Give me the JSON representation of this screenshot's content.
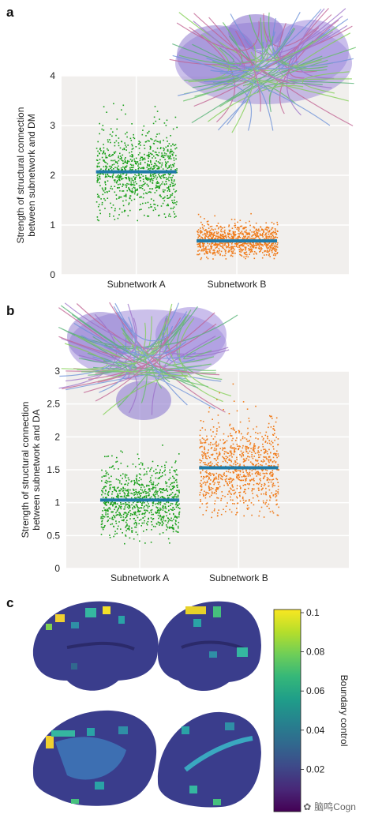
{
  "panels": {
    "a": "a",
    "b": "b",
    "c": "c"
  },
  "chart_data": [
    {
      "type": "scatter",
      "panel": "a",
      "ylabel_lines": [
        "Strength of structural connection",
        "between subnetwork and DM"
      ],
      "categories": [
        "Subnetwork A",
        "Subnetwork B"
      ],
      "ylim": [
        0,
        4
      ],
      "yticks": [
        "0",
        "1",
        "2",
        "3",
        "4"
      ],
      "grid": true,
      "series": [
        {
          "name": "Subnetwork A",
          "color": "#1aa01a",
          "mean": 2.07,
          "min": 1.1,
          "max": 3.6,
          "spread": 0.42,
          "n": 900
        },
        {
          "name": "Subnetwork B",
          "color": "#f07b1a",
          "mean": 0.68,
          "min": 0.32,
          "max": 1.25,
          "spread": 0.17,
          "n": 900
        }
      ],
      "mean_line_color": "#1f7aa8"
    },
    {
      "type": "scatter",
      "panel": "b",
      "ylabel_lines": [
        "Strength of structural connection",
        "between subnetwork and DA"
      ],
      "categories": [
        "Subnetwork A",
        "Subnetwork B"
      ],
      "ylim": [
        0,
        3
      ],
      "yticks": [
        "0",
        "0.5",
        "1",
        "1.5",
        "2",
        "2.5",
        "3"
      ],
      "grid": true,
      "series": [
        {
          "name": "Subnetwork A",
          "color": "#1aa01a",
          "mean": 1.04,
          "min": 0.35,
          "max": 1.97,
          "spread": 0.27,
          "n": 900
        },
        {
          "name": "Subnetwork B",
          "color": "#f07b1a",
          "mean": 1.53,
          "min": 0.78,
          "max": 2.82,
          "spread": 0.36,
          "n": 900
        }
      ],
      "mean_line_color": "#1f7aa8"
    }
  ],
  "colorbar": {
    "label": "Boundary control",
    "ticks": [
      "0.1",
      "0.08",
      "0.06",
      "0.04",
      "0.02"
    ],
    "colors": [
      "#f9e721",
      "#b5de2b",
      "#6ece58",
      "#35b779",
      "#1f9e89",
      "#26828e",
      "#31688e",
      "#3e4989",
      "#482878",
      "#440154"
    ]
  },
  "watermark": "脑鸣Cogn"
}
